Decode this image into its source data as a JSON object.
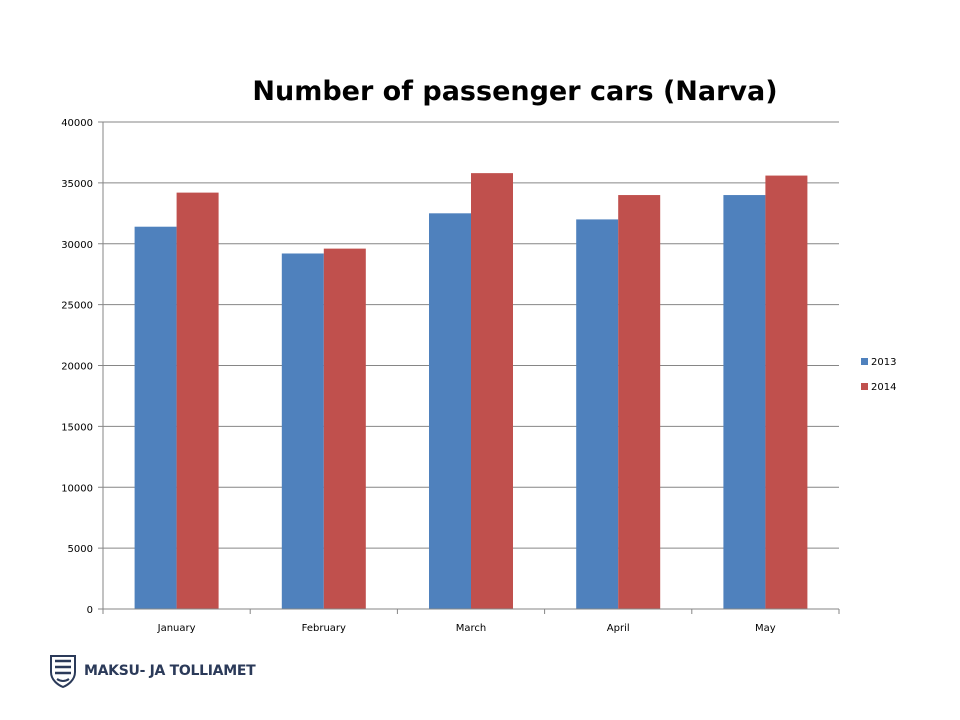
{
  "chart_data": {
    "type": "bar",
    "title": "Number of passenger cars (Narva)",
    "categories": [
      "January",
      "February",
      "March",
      "April",
      "May"
    ],
    "series": [
      {
        "name": "2013",
        "color": "#4f81bd",
        "values": [
          31400,
          29200,
          32500,
          32000,
          34000
        ]
      },
      {
        "name": "2014",
        "color": "#c0504d",
        "values": [
          34200,
          29600,
          35800,
          34000,
          35600
        ]
      }
    ],
    "ylim": [
      0,
      40000
    ],
    "yticks": [
      "0",
      "5000",
      "10000",
      "15000",
      "20000",
      "25000",
      "30000",
      "35000",
      "40000"
    ],
    "grid": true,
    "legend": "right"
  },
  "logo": {
    "text": "MAKSU- JA TOLLIAMET",
    "icon": "coat-of-arms-icon"
  }
}
